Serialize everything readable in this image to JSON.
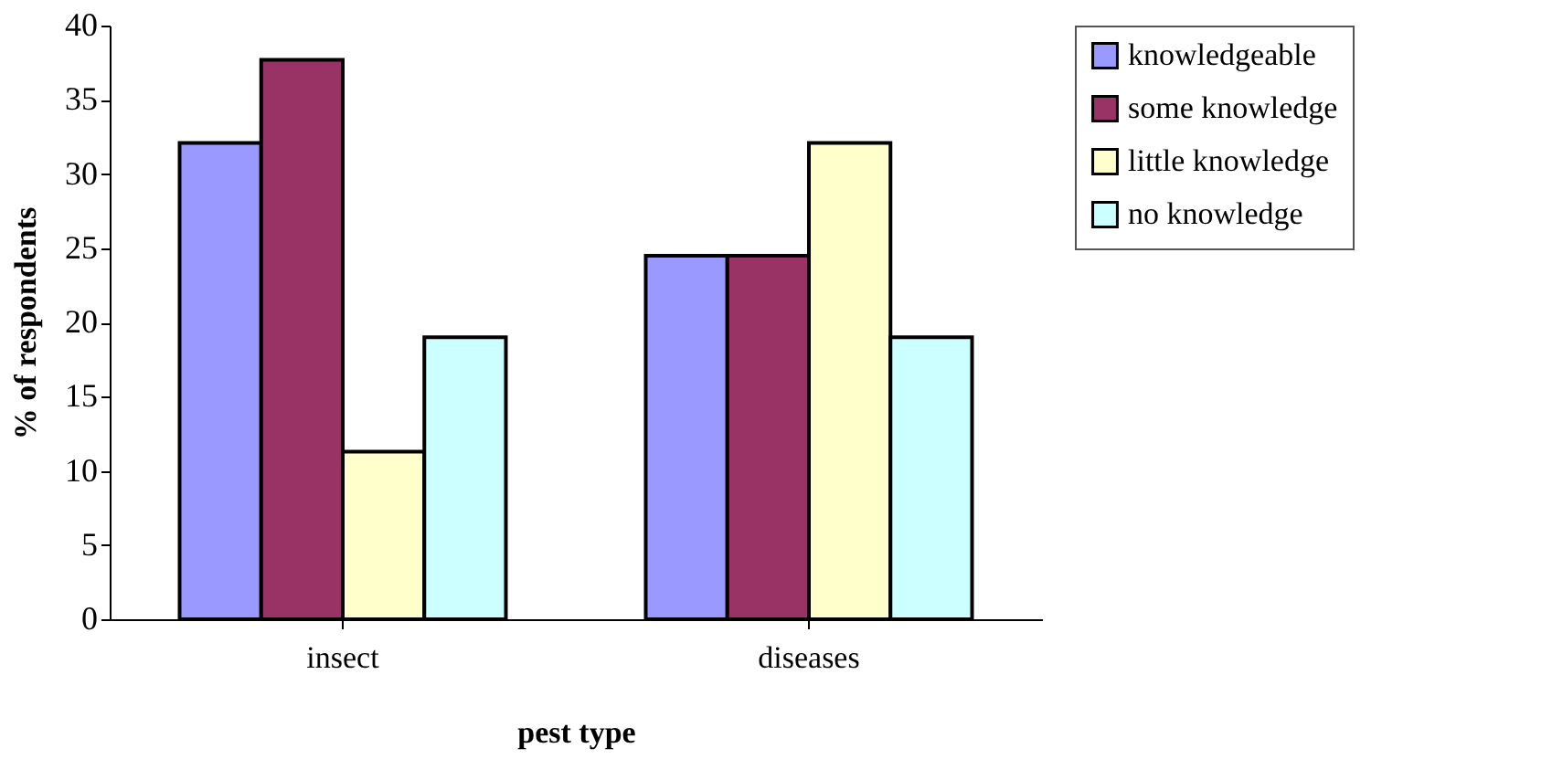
{
  "chart_data": {
    "type": "bar",
    "xlabel": "pest type",
    "ylabel": "% of respondents",
    "categories": [
      "insect",
      "diseases"
    ],
    "series": [
      {
        "name": "knowledgeable",
        "color": "#9999ff",
        "values": [
          32.1,
          24.5
        ]
      },
      {
        "name": "some knowledge",
        "color": "#993366",
        "values": [
          37.7,
          24.5
        ]
      },
      {
        "name": "little knowledge",
        "color": "#ffffcc",
        "values": [
          11.3,
          32.1
        ]
      },
      {
        "name": "no knowledge",
        "color": "#ccffff",
        "values": [
          19.0,
          19.0
        ]
      }
    ],
    "ylim": [
      0,
      40
    ],
    "yticks": [
      0,
      5,
      10,
      15,
      20,
      25,
      30,
      35,
      40
    ],
    "grid": false,
    "legend": "right"
  }
}
